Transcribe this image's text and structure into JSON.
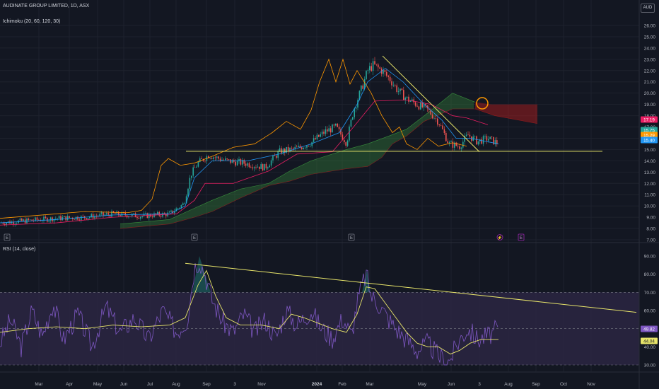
{
  "header": {
    "symbol_line": "AUDINATE GROUP LIMITED, 1D, ASX",
    "indicator": "Ichimoku (20, 60, 120, 30)",
    "currency": "AUD",
    "rsi_label": "RSI (14, close)"
  },
  "colors": {
    "background": "#131722",
    "grid": "#1e222d",
    "up": "#26a69a",
    "down": "#ef5350",
    "tenkan": "#2196f3",
    "kijun": "#e91e63",
    "chikou": "#ff9800",
    "cloud_bull": "#388e3c",
    "cloud_bear": "#b71c1c",
    "trendline": "#e8e56a",
    "rsi": "#7e57c2",
    "rsi_ma": "#e8e56a",
    "rsi_band": "#2a2540"
  },
  "chart_data": [
    {
      "type": "candlestick",
      "title": "AUDINATE GROUP LIMITED, 1D, ASX",
      "y_axis_ticks": [
        "26.00",
        "25.00",
        "24.00",
        "23.00",
        "22.00",
        "21.00",
        "20.00",
        "19.00",
        "18.00",
        "17.00",
        "16.00",
        "15.00",
        "14.00",
        "13.00",
        "12.00",
        "11.00",
        "10.00",
        "9.00",
        "8.00",
        "7.00"
      ],
      "ylim": [
        7,
        26.4
      ],
      "x_axis_ticks": [
        "Mar",
        "Apr",
        "May",
        "Jun",
        "Jul",
        "Aug",
        "Sep",
        "3",
        "Nov",
        "2024",
        "Feb",
        "Mar",
        "May",
        "Jun",
        "3",
        "Aug",
        "Sep",
        "Oct",
        "Nov"
      ],
      "price_tags": [
        {
          "value": "17.19",
          "color": "#e91e63"
        },
        {
          "value": "15.75",
          "color": "#26a69a"
        },
        {
          "value": "15.29",
          "color": "#ff9800"
        },
        {
          "value": "15.40",
          "color": "#2196f3"
        }
      ],
      "earnings_markers": [
        "E",
        "E",
        "E",
        "E"
      ],
      "close_path": [
        [
          0,
          8.5
        ],
        [
          40,
          8.7
        ],
        [
          80,
          8.9
        ],
        [
          120,
          9.0
        ],
        [
          160,
          9.3
        ],
        [
          200,
          9.1
        ],
        [
          240,
          9.3
        ],
        [
          260,
          10.2
        ],
        [
          270,
          12.8
        ],
        [
          280,
          13.8
        ],
        [
          295,
          14.5
        ],
        [
          320,
          14.0
        ],
        [
          345,
          13.8
        ],
        [
          375,
          13.4
        ],
        [
          395,
          14.8
        ],
        [
          420,
          15.1
        ],
        [
          440,
          15.6
        ],
        [
          460,
          16.6
        ],
        [
          475,
          17.0
        ],
        [
          490,
          15.6
        ],
        [
          500,
          18.5
        ],
        [
          512,
          20.5
        ],
        [
          520,
          22.0
        ],
        [
          528,
          22.5
        ],
        [
          540,
          22.0
        ],
        [
          552,
          21.2
        ],
        [
          562,
          20.3
        ],
        [
          575,
          19.5
        ],
        [
          590,
          19.0
        ],
        [
          605,
          18.5
        ],
        [
          620,
          17.5
        ],
        [
          635,
          15.5
        ],
        [
          650,
          15.3
        ],
        [
          662,
          16.3
        ],
        [
          675,
          15.7
        ],
        [
          690,
          16.0
        ],
        [
          705,
          15.5
        ]
      ],
      "lines": {
        "tenkan": [
          [
            0,
            8.5
          ],
          [
            80,
            8.8
          ],
          [
            160,
            9.2
          ],
          [
            240,
            9.3
          ],
          [
            262,
            10.0
          ],
          [
            275,
            12.5
          ],
          [
            300,
            14.0
          ],
          [
            350,
            14.0
          ],
          [
            395,
            14.6
          ],
          [
            440,
            15.5
          ],
          [
            480,
            16.5
          ],
          [
            505,
            19.0
          ],
          [
            520,
            21.0
          ],
          [
            545,
            22.2
          ],
          [
            570,
            21.0
          ],
          [
            600,
            19.0
          ],
          [
            625,
            17.6
          ],
          [
            645,
            16.0
          ],
          [
            665,
            16.0
          ],
          [
            705,
            15.5
          ]
        ],
        "kijun": [
          [
            0,
            8.3
          ],
          [
            80,
            8.5
          ],
          [
            160,
            9.0
          ],
          [
            250,
            9.3
          ],
          [
            275,
            10.5
          ],
          [
            290,
            12.0
          ],
          [
            330,
            12.0
          ],
          [
            380,
            13.1
          ],
          [
            420,
            14.6
          ],
          [
            470,
            14.8
          ],
          [
            500,
            17.0
          ],
          [
            530,
            19.3
          ],
          [
            575,
            19.4
          ],
          [
            610,
            19.0
          ],
          [
            640,
            18.0
          ],
          [
            660,
            17.8
          ],
          [
            690,
            17.2
          ]
        ],
        "chikou": [
          [
            0,
            8.9
          ],
          [
            60,
            9.2
          ],
          [
            120,
            9.5
          ],
          [
            180,
            9.4
          ],
          [
            200,
            9.6
          ],
          [
            215,
            10.6
          ],
          [
            228,
            13.6
          ],
          [
            238,
            14.2
          ],
          [
            255,
            13.6
          ],
          [
            275,
            13.8
          ],
          [
            300,
            14.4
          ],
          [
            330,
            15.2
          ],
          [
            360,
            15.5
          ],
          [
            385,
            16.5
          ],
          [
            405,
            17.5
          ],
          [
            425,
            16.8
          ],
          [
            440,
            18.5
          ],
          [
            452,
            21.0
          ],
          [
            465,
            23.0
          ],
          [
            475,
            21.0
          ],
          [
            485,
            23.0
          ],
          [
            495,
            20.8
          ],
          [
            505,
            22.0
          ],
          [
            525,
            20.0
          ],
          [
            540,
            18.0
          ],
          [
            555,
            16.5
          ],
          [
            565,
            17.0
          ],
          [
            575,
            15.5
          ],
          [
            590,
            15.0
          ],
          [
            605,
            16.0
          ],
          [
            620,
            15.3
          ],
          [
            640,
            15.6
          ],
          [
            660,
            15.3
          ]
        ],
        "cloud_top": [
          [
            170,
            8.4
          ],
          [
            240,
            8.8
          ],
          [
            275,
            9.8
          ],
          [
            300,
            10.5
          ],
          [
            340,
            11.5
          ],
          [
            380,
            12.0
          ],
          [
            410,
            13.1
          ],
          [
            440,
            14.0
          ],
          [
            490,
            15.0
          ],
          [
            520,
            15.5
          ],
          [
            550,
            16.2
          ],
          [
            575,
            16.8
          ],
          [
            600,
            18.0
          ],
          [
            640,
            20.0
          ],
          [
            672,
            19.2
          ],
          [
            695,
            19.0
          ],
          [
            760,
            19.0
          ]
        ],
        "cloud_bottom": [
          [
            170,
            8.0
          ],
          [
            240,
            8.4
          ],
          [
            275,
            9.0
          ],
          [
            300,
            9.5
          ],
          [
            340,
            10.7
          ],
          [
            380,
            11.8
          ],
          [
            410,
            12.2
          ],
          [
            440,
            12.8
          ],
          [
            490,
            13.3
          ],
          [
            520,
            13.5
          ],
          [
            540,
            14.3
          ],
          [
            555,
            15.5
          ],
          [
            575,
            16.2
          ],
          [
            600,
            17.5
          ],
          [
            640,
            18.6
          ],
          [
            672,
            18.6
          ],
          [
            700,
            18.0
          ],
          [
            760,
            17.3
          ]
        ]
      },
      "annotations": {
        "support_line": 14.85,
        "downtrend_from": [
          541,
          23.3
        ],
        "downtrend_to": [
          678,
          14.8
        ],
        "circle_marker": [
          682,
          19.1
        ]
      }
    },
    {
      "type": "line",
      "title": "RSI (14, close)",
      "y_axis_ticks": [
        "90.00",
        "80.00",
        "70.00",
        "60.00",
        "50.00",
        "40.00",
        "30.00"
      ],
      "ylim": [
        26,
        95
      ],
      "bands": [
        30,
        50,
        70
      ],
      "price_tags": [
        {
          "value": "49.82",
          "color": "#7e57c2"
        },
        {
          "value": "44.04",
          "color": "#e8e56a"
        }
      ],
      "rsi_path": [
        [
          0,
          42
        ],
        [
          15,
          55
        ],
        [
          30,
          40
        ],
        [
          45,
          60
        ],
        [
          60,
          46
        ],
        [
          75,
          64
        ],
        [
          90,
          44
        ],
        [
          110,
          58
        ],
        [
          130,
          40
        ],
        [
          150,
          62
        ],
        [
          170,
          48
        ],
        [
          190,
          56
        ],
        [
          210,
          44
        ],
        [
          230,
          60
        ],
        [
          250,
          48
        ],
        [
          265,
          55
        ],
        [
          275,
          84
        ],
        [
          282,
          88
        ],
        [
          290,
          80
        ],
        [
          300,
          66
        ],
        [
          315,
          54
        ],
        [
          330,
          48
        ],
        [
          345,
          58
        ],
        [
          360,
          48
        ],
        [
          375,
          55
        ],
        [
          390,
          45
        ],
        [
          405,
          60
        ],
        [
          420,
          52
        ],
        [
          440,
          60
        ],
        [
          455,
          50
        ],
        [
          470,
          45
        ],
        [
          485,
          56
        ],
        [
          497,
          46
        ],
        [
          505,
          64
        ],
        [
          512,
          74
        ],
        [
          518,
          80
        ],
        [
          525,
          68
        ],
        [
          535,
          64
        ],
        [
          548,
          56
        ],
        [
          560,
          50
        ],
        [
          575,
          44
        ],
        [
          590,
          38
        ],
        [
          605,
          42
        ],
        [
          620,
          35
        ],
        [
          635,
          32
        ],
        [
          650,
          44
        ],
        [
          662,
          50
        ],
        [
          675,
          44
        ],
        [
          690,
          46
        ],
        [
          705,
          49.8
        ]
      ],
      "rsi_ma_path": [
        [
          0,
          48
        ],
        [
          40,
          50
        ],
        [
          80,
          51
        ],
        [
          120,
          50
        ],
        [
          160,
          52
        ],
        [
          200,
          51
        ],
        [
          240,
          52
        ],
        [
          262,
          56
        ],
        [
          280,
          74
        ],
        [
          292,
          82
        ],
        [
          305,
          68
        ],
        [
          320,
          56
        ],
        [
          340,
          52
        ],
        [
          370,
          52
        ],
        [
          395,
          50
        ],
        [
          412,
          58
        ],
        [
          430,
          56
        ],
        [
          450,
          53
        ],
        [
          470,
          50
        ],
        [
          490,
          48
        ],
        [
          505,
          58
        ],
        [
          518,
          73
        ],
        [
          530,
          72
        ],
        [
          545,
          64
        ],
        [
          560,
          56
        ],
        [
          575,
          48
        ],
        [
          590,
          42
        ],
        [
          605,
          40
        ],
        [
          620,
          40
        ],
        [
          637,
          36
        ],
        [
          650,
          38
        ],
        [
          665,
          42
        ],
        [
          680,
          44
        ],
        [
          705,
          44
        ]
      ],
      "trendline": [
        [
          262,
          86
        ],
        [
          900,
          59
        ]
      ]
    }
  ]
}
